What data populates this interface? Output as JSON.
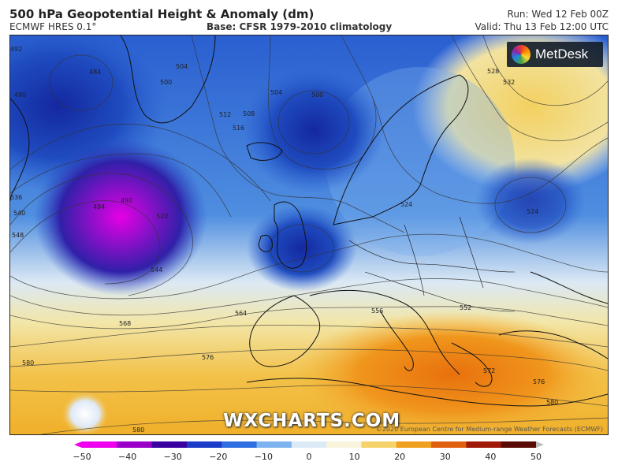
{
  "header": {
    "title": "500 hPa Geopotential Height & Anomaly (dm)",
    "model": "ECMWF HRES 0.1°",
    "base": "Base: CFSR 1979-2010 climatology",
    "run": "Run: Wed 12 Feb 00Z",
    "valid": "Valid: Thu 13 Feb 12:00 UTC"
  },
  "branding": {
    "logo_text": "MetDesk",
    "watermark": "WXCHARTS.COM",
    "copyright": "©2020 European Centre for Medium-range Weather Forecasts (ECMWF)"
  },
  "contour_labels": [
    "492",
    "484",
    "480",
    "500",
    "504",
    "508",
    "500",
    "512",
    "516",
    "504",
    "484",
    "492",
    "520",
    "524",
    "524",
    "528",
    "532",
    "536",
    "540",
    "548",
    "544",
    "552",
    "564",
    "556",
    "568",
    "576",
    "580",
    "576",
    "572",
    "580",
    "580"
  ],
  "colorbar": {
    "ticks": [
      "−50",
      "−40",
      "−30",
      "−20",
      "−10",
      "0",
      "10",
      "20",
      "30",
      "40",
      "50"
    ],
    "min": -50,
    "max": 50,
    "colors": [
      "#ee00ee",
      "#9a00c8",
      "#3a00a0",
      "#1a3cc8",
      "#2f6fe0",
      "#7fb3ee",
      "#dbeaf6",
      "#f8f4dc",
      "#f5d36a",
      "#f0a020",
      "#e06010",
      "#a01808",
      "#5a0a05",
      "#bbbbbb"
    ]
  }
}
